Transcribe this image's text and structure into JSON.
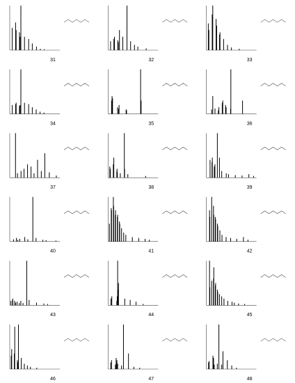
{
  "chart_data": [
    {
      "type": "spectrum",
      "title": "31",
      "color": "#000000",
      "xlim": [
        20,
        200
      ],
      "ylim": [
        0,
        100
      ],
      "x": [
        29,
        41,
        43,
        55,
        57,
        60,
        73,
        88,
        101,
        116,
        130,
        144
      ],
      "values": [
        50,
        62,
        45,
        40,
        30,
        100,
        30,
        25,
        15,
        8,
        3,
        2
      ]
    },
    {
      "type": "spectrum",
      "title": "32",
      "color": "#000000",
      "xlim": [
        20,
        200
      ],
      "ylim": [
        0,
        100
      ],
      "x": [
        29,
        41,
        43,
        55,
        57,
        61,
        73,
        88,
        101,
        115,
        127,
        157
      ],
      "values": [
        20,
        25,
        30,
        22,
        18,
        45,
        30,
        100,
        20,
        12,
        8,
        4
      ]
    },
    {
      "type": "spectrum",
      "title": "33",
      "color": "#000000",
      "xlim": [
        20,
        200
      ],
      "ylim": [
        0,
        100
      ],
      "x": [
        27,
        29,
        41,
        43,
        55,
        57,
        67,
        69,
        82,
        96,
        110,
        138
      ],
      "values": [
        60,
        45,
        80,
        100,
        70,
        55,
        35,
        40,
        25,
        12,
        6,
        3
      ]
    },
    {
      "type": "spectrum",
      "title": "34",
      "color": "#000000",
      "xlim": [
        20,
        200
      ],
      "ylim": [
        0,
        100
      ],
      "x": [
        29,
        41,
        43,
        55,
        57,
        60,
        73,
        88,
        101,
        115,
        129,
        143
      ],
      "values": [
        20,
        22,
        25,
        18,
        20,
        100,
        25,
        22,
        15,
        10,
        5,
        3
      ]
    },
    {
      "type": "spectrum",
      "title": "35",
      "color": "#000000",
      "xlim": [
        20,
        120
      ],
      "ylim": [
        0,
        100
      ],
      "x": [
        27,
        28,
        29,
        39,
        41,
        42,
        56,
        57,
        85,
        86
      ],
      "values": [
        30,
        40,
        35,
        15,
        12,
        20,
        10,
        8,
        100,
        30
      ]
    },
    {
      "type": "spectrum",
      "title": "36",
      "color": "#000000",
      "xlim": [
        20,
        200
      ],
      "ylim": [
        0,
        100
      ],
      "x": [
        39,
        43,
        51,
        63,
        65,
        77,
        79,
        89,
        91,
        107,
        108,
        150
      ],
      "values": [
        10,
        40,
        12,
        8,
        15,
        25,
        30,
        20,
        15,
        12,
        100,
        30
      ]
    },
    {
      "type": "spectrum",
      "title": "37",
      "color": "#000000",
      "xlim": [
        20,
        220
      ],
      "ylim": [
        0,
        100
      ],
      "x": [
        43,
        51,
        65,
        77,
        91,
        105,
        117,
        131,
        146,
        160,
        178,
        206
      ],
      "values": [
        100,
        10,
        15,
        20,
        30,
        25,
        10,
        40,
        15,
        55,
        12,
        5
      ]
    },
    {
      "type": "spectrum",
      "title": "38",
      "color": "#000000",
      "xlim": [
        20,
        220
      ],
      "ylim": [
        0,
        100
      ],
      "x": [
        27,
        29,
        41,
        43,
        55,
        56,
        57,
        69,
        85,
        86,
        99,
        170
      ],
      "values": [
        25,
        20,
        30,
        45,
        15,
        20,
        12,
        10,
        100,
        20,
        8,
        4
      ]
    },
    {
      "type": "spectrum",
      "title": "39",
      "color": "#000000",
      "xlim": [
        20,
        330
      ],
      "ylim": [
        0,
        100
      ],
      "x": [
        43,
        55,
        57,
        69,
        73,
        88,
        101,
        115,
        143,
        157,
        199,
        241,
        283,
        312
      ],
      "values": [
        40,
        35,
        45,
        25,
        30,
        100,
        45,
        15,
        10,
        8,
        6,
        5,
        8,
        4
      ]
    },
    {
      "type": "spectrum",
      "title": "40",
      "color": "#000000",
      "xlim": [
        20,
        300
      ],
      "ylim": [
        0,
        100
      ],
      "x": [
        41,
        57,
        65,
        76,
        104,
        121,
        149,
        167,
        205,
        223,
        278
      ],
      "values": [
        5,
        8,
        4,
        6,
        10,
        5,
        100,
        8,
        4,
        3,
        2
      ]
    },
    {
      "type": "spectrum",
      "title": "41",
      "color": "#000000",
      "xlim": [
        20,
        350
      ],
      "ylim": [
        0,
        100
      ],
      "x": [
        29,
        41,
        43,
        55,
        57,
        67,
        69,
        81,
        83,
        95,
        97,
        109,
        123,
        137,
        180,
        222,
        264,
        292
      ],
      "values": [
        40,
        75,
        70,
        100,
        80,
        60,
        70,
        55,
        60,
        45,
        40,
        30,
        20,
        15,
        10,
        8,
        6,
        4
      ]
    },
    {
      "type": "spectrum",
      "title": "42",
      "color": "#000000",
      "xlim": [
        20,
        350
      ],
      "ylim": [
        0,
        100
      ],
      "x": [
        41,
        43,
        55,
        67,
        69,
        79,
        81,
        93,
        95,
        109,
        123,
        150,
        180,
        220,
        264,
        294
      ],
      "values": [
        70,
        55,
        100,
        80,
        60,
        55,
        50,
        40,
        35,
        25,
        15,
        10,
        8,
        6,
        10,
        4
      ]
    },
    {
      "type": "spectrum",
      "title": "43",
      "color": "#000000",
      "xlim": [
        20,
        400
      ],
      "ylim": [
        0,
        100
      ],
      "x": [
        29,
        41,
        43,
        57,
        65,
        76,
        93,
        104,
        121,
        149,
        167,
        223,
        279,
        307
      ],
      "values": [
        10,
        12,
        15,
        10,
        6,
        8,
        5,
        10,
        5,
        100,
        12,
        6,
        4,
        3
      ]
    },
    {
      "type": "spectrum",
      "title": "44",
      "color": "#000000",
      "xlim": [
        20,
        140
      ],
      "ylim": [
        0,
        100
      ],
      "x": [
        27,
        29,
        41,
        42,
        43,
        44,
        45,
        60,
        73,
        87,
        104
      ],
      "values": [
        15,
        20,
        10,
        20,
        100,
        35,
        50,
        15,
        12,
        8,
        3
      ]
    },
    {
      "type": "spectrum",
      "title": "45",
      "color": "#000000",
      "xlim": [
        20,
        350
      ],
      "ylim": [
        0,
        100
      ],
      "x": [
        41,
        43,
        55,
        67,
        69,
        79,
        81,
        93,
        95,
        107,
        121,
        136,
        161,
        189,
        204,
        232,
        272
      ],
      "values": [
        100,
        40,
        55,
        60,
        85,
        45,
        50,
        35,
        30,
        25,
        20,
        15,
        10,
        8,
        6,
        4,
        3
      ]
    },
    {
      "type": "spectrum",
      "title": "46",
      "color": "#000000",
      "xlim": [
        20,
        250
      ],
      "ylim": [
        0,
        100
      ],
      "x": [
        27,
        29,
        41,
        43,
        55,
        57,
        60,
        73,
        87,
        101,
        115,
        144
      ],
      "values": [
        30,
        45,
        35,
        95,
        20,
        15,
        100,
        25,
        12,
        8,
        5,
        3
      ]
    },
    {
      "type": "spectrum",
      "title": "47",
      "color": "#000000",
      "xlim": [
        20,
        150
      ],
      "ylim": [
        0,
        100
      ],
      "x": [
        27,
        29,
        39,
        41,
        42,
        43,
        45,
        55,
        60,
        73,
        87,
        102
      ],
      "values": [
        15,
        20,
        10,
        25,
        15,
        20,
        12,
        8,
        100,
        35,
        5,
        3
      ]
    },
    {
      "type": "spectrum",
      "title": "48",
      "color": "#000000",
      "xlim": [
        20,
        180
      ],
      "ylim": [
        0,
        100
      ],
      "x": [
        27,
        29,
        41,
        43,
        45,
        55,
        60,
        69,
        73,
        87,
        101,
        116
      ],
      "values": [
        15,
        18,
        30,
        25,
        10,
        12,
        100,
        10,
        40,
        20,
        8,
        3
      ]
    }
  ]
}
